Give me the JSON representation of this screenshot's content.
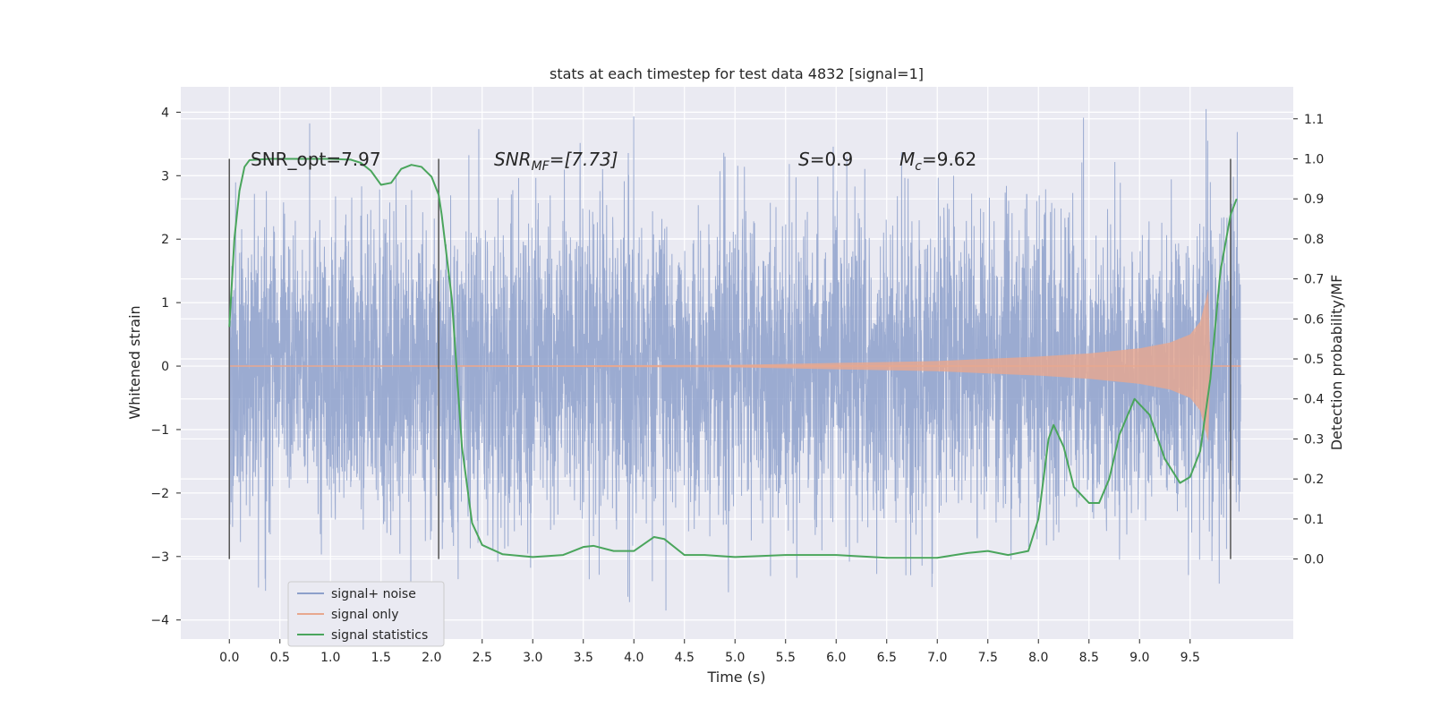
{
  "chart_data": {
    "type": "line",
    "title": "stats at each timestep for test data 4832 [signal=1]",
    "xlabel": "Time (s)",
    "ylabel": "Whitened strain",
    "ylabel_right": "Detection probability/MF",
    "xlim": [
      -0.48,
      10.52
    ],
    "ylim": [
      -4.3,
      4.4
    ],
    "ylim_right": [
      -0.2,
      1.18
    ],
    "x_ticks": [
      "0.0",
      "0.5",
      "1.0",
      "1.5",
      "2.0",
      "2.5",
      "3.0",
      "3.5",
      "4.0",
      "4.5",
      "5.0",
      "5.5",
      "6.0",
      "6.5",
      "7.0",
      "7.5",
      "8.0",
      "8.5",
      "9.0",
      "9.5"
    ],
    "y_ticks": [
      "−4",
      "−3",
      "−2",
      "−1",
      "0",
      "1",
      "2",
      "3",
      "4"
    ],
    "y_ticks_right": [
      "0.0",
      "0.1",
      "0.2",
      "0.3",
      "0.4",
      "0.5",
      "0.6",
      "0.7",
      "0.8",
      "0.9",
      "1.0",
      "1.1"
    ],
    "grid": true,
    "legend_position": "lower-left",
    "annotations": {
      "snr_opt": "SNR_opt=7.97",
      "snr_mf_label": "SNR",
      "snr_mf_sub": "MF",
      "snr_mf_value": "=[7.73]",
      "s_label": "S",
      "s_value": "=0.9",
      "mc_label": "M",
      "mc_sub": "c",
      "mc_value": "=9.62"
    },
    "vertical_markers_x": [
      0.0,
      2.07,
      9.9
    ],
    "series": [
      {
        "name": "signal+ noise",
        "color": "#8da0cb",
        "axis": "left",
        "x_range": [
          0.0,
          10.0
        ],
        "typical_amplitude": 1.2,
        "max": 4.05,
        "min": -3.85
      },
      {
        "name": "signal only",
        "color": "#e8a88f",
        "axis": "left",
        "x_range": [
          0.0,
          10.0
        ],
        "envelope": [
          [
            5.0,
            0.02
          ],
          [
            6.0,
            0.05
          ],
          [
            7.0,
            0.08
          ],
          [
            8.0,
            0.15
          ],
          [
            8.5,
            0.2
          ],
          [
            9.0,
            0.28
          ],
          [
            9.3,
            0.37
          ],
          [
            9.5,
            0.5
          ],
          [
            9.6,
            0.7
          ],
          [
            9.68,
            1.2
          ],
          [
            9.7,
            0.0
          ]
        ]
      },
      {
        "name": "signal statistics",
        "color": "#4aa55c",
        "axis": "right",
        "points": [
          [
            0.0,
            0.58
          ],
          [
            0.05,
            0.8
          ],
          [
            0.1,
            0.92
          ],
          [
            0.15,
            0.98
          ],
          [
            0.2,
            0.997
          ],
          [
            0.4,
            1.0
          ],
          [
            1.0,
            1.0
          ],
          [
            1.2,
            0.998
          ],
          [
            1.3,
            0.99
          ],
          [
            1.4,
            0.97
          ],
          [
            1.5,
            0.935
          ],
          [
            1.6,
            0.94
          ],
          [
            1.7,
            0.975
          ],
          [
            1.8,
            0.985
          ],
          [
            1.9,
            0.98
          ],
          [
            2.0,
            0.955
          ],
          [
            2.07,
            0.91
          ],
          [
            2.1,
            0.86
          ],
          [
            2.2,
            0.65
          ],
          [
            2.3,
            0.28
          ],
          [
            2.4,
            0.09
          ],
          [
            2.5,
            0.035
          ],
          [
            2.7,
            0.012
          ],
          [
            3.0,
            0.005
          ],
          [
            3.3,
            0.01
          ],
          [
            3.5,
            0.03
          ],
          [
            3.6,
            0.033
          ],
          [
            3.8,
            0.02
          ],
          [
            4.0,
            0.02
          ],
          [
            4.2,
            0.055
          ],
          [
            4.3,
            0.05
          ],
          [
            4.5,
            0.01
          ],
          [
            4.7,
            0.01
          ],
          [
            5.0,
            0.005
          ],
          [
            5.5,
            0.01
          ],
          [
            6.0,
            0.01
          ],
          [
            6.5,
            0.003
          ],
          [
            7.0,
            0.003
          ],
          [
            7.3,
            0.015
          ],
          [
            7.5,
            0.02
          ],
          [
            7.7,
            0.01
          ],
          [
            7.9,
            0.02
          ],
          [
            8.0,
            0.1
          ],
          [
            8.1,
            0.3
          ],
          [
            8.15,
            0.335
          ],
          [
            8.25,
            0.28
          ],
          [
            8.35,
            0.18
          ],
          [
            8.5,
            0.14
          ],
          [
            8.6,
            0.14
          ],
          [
            8.7,
            0.2
          ],
          [
            8.8,
            0.31
          ],
          [
            8.95,
            0.4
          ],
          [
            9.1,
            0.36
          ],
          [
            9.25,
            0.25
          ],
          [
            9.4,
            0.19
          ],
          [
            9.5,
            0.205
          ],
          [
            9.6,
            0.27
          ],
          [
            9.7,
            0.45
          ],
          [
            9.8,
            0.72
          ],
          [
            9.9,
            0.86
          ],
          [
            9.96,
            0.9
          ]
        ]
      }
    ]
  }
}
